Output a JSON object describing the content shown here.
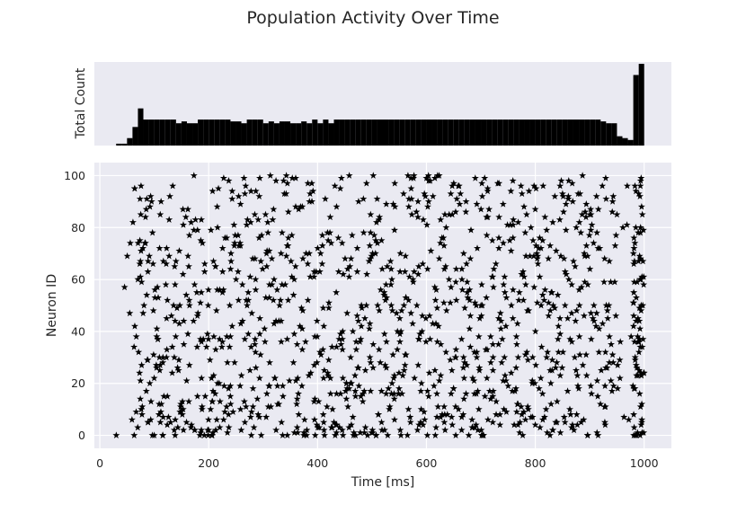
{
  "chart_data": {
    "type": "scatter",
    "title": "Population Activity Over Time",
    "subplots": [
      {
        "type": "bar",
        "ylabel": "Total Count",
        "xlim": [
          -10,
          1050
        ],
        "ylim": [
          0,
          45
        ],
        "grid": false,
        "bin_width_ms": 10,
        "x": [
          30,
          40,
          50,
          60,
          70,
          80,
          90,
          100,
          110,
          120,
          130,
          140,
          150,
          160,
          170,
          180,
          190,
          200,
          210,
          220,
          230,
          240,
          250,
          260,
          270,
          280,
          290,
          300,
          310,
          320,
          330,
          340,
          350,
          360,
          370,
          380,
          390,
          400,
          410,
          420,
          430,
          440,
          450,
          460,
          470,
          480,
          490,
          500,
          510,
          520,
          530,
          540,
          550,
          560,
          570,
          580,
          590,
          600,
          610,
          620,
          630,
          640,
          650,
          660,
          670,
          680,
          690,
          700,
          710,
          720,
          730,
          740,
          750,
          760,
          770,
          780,
          790,
          800,
          810,
          820,
          830,
          840,
          850,
          860,
          870,
          880,
          890,
          900,
          910,
          920,
          930,
          940,
          950,
          960,
          970,
          980,
          990
        ],
        "values": [
          1,
          1,
          4,
          10,
          20,
          14,
          14,
          14,
          14,
          14,
          14,
          12,
          13,
          12,
          12,
          14,
          14,
          14,
          14,
          14,
          14,
          13,
          13,
          12,
          14,
          14,
          14,
          12,
          13,
          12,
          13,
          13,
          12,
          12,
          13,
          12,
          14,
          12,
          14,
          12,
          14,
          14,
          14,
          14,
          14,
          14,
          14,
          14,
          14,
          14,
          14,
          14,
          14,
          14,
          14,
          14,
          14,
          14,
          14,
          14,
          14,
          14,
          14,
          14,
          14,
          14,
          14,
          14,
          14,
          14,
          14,
          14,
          14,
          14,
          14,
          14,
          14,
          14,
          14,
          14,
          14,
          14,
          14,
          14,
          14,
          14,
          14,
          14,
          14,
          13,
          12,
          12,
          5,
          4,
          3,
          38,
          44
        ]
      },
      {
        "type": "scatter",
        "marker": "star",
        "color": "#000000",
        "xlabel": "Time [ms]",
        "ylabel": "Neuron ID",
        "xlim": [
          -10,
          1050
        ],
        "ylim": [
          -5,
          105
        ],
        "xticks": [
          0,
          200,
          400,
          600,
          800,
          1000
        ],
        "yticks": [
          0,
          20,
          40,
          60,
          80,
          100
        ],
        "grid": true,
        "neurons": 101,
        "time_range_ms": [
          30,
          1000
        ]
      }
    ]
  }
}
